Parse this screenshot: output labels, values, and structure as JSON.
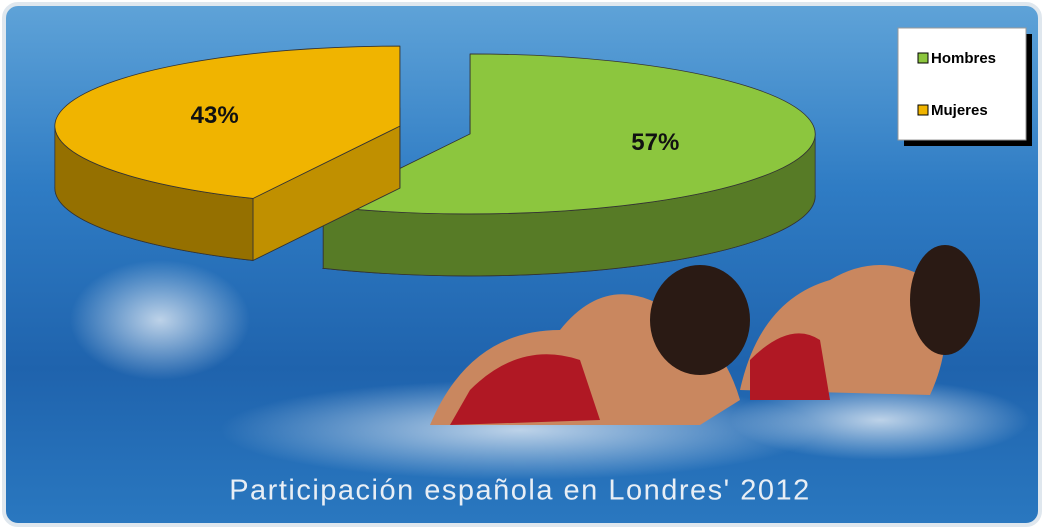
{
  "chart_data": {
    "type": "pie",
    "title": "Participación española en Londres' 2012",
    "categories": [
      "Hombres",
      "Mujeres"
    ],
    "values": [
      57,
      43
    ],
    "value_labels": [
      "57%",
      "43%"
    ],
    "colors": [
      "#8cc63e",
      "#f0b400"
    ],
    "legend": "top-right"
  }
}
